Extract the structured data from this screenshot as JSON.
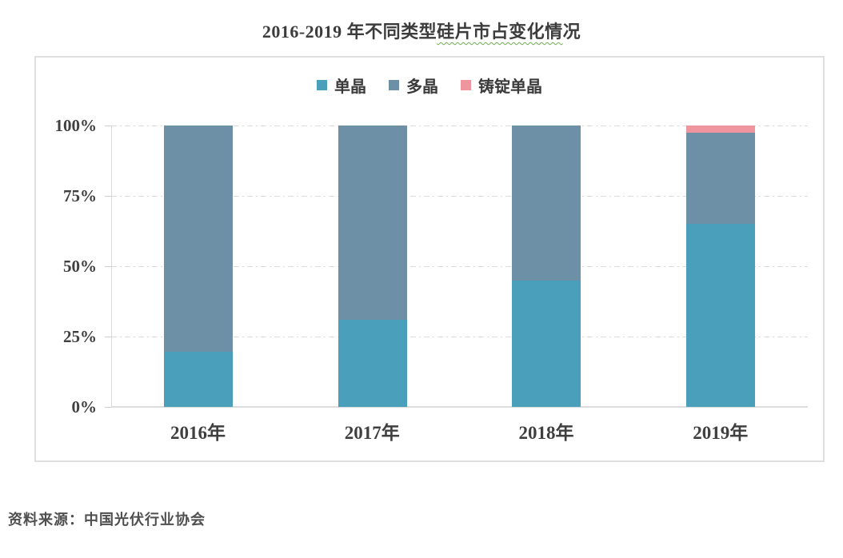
{
  "title": {
    "prefix": "2016-2019 年不同类型",
    "squiggle": "硅片市占变化情",
    "suffix": "况"
  },
  "source_note": "资料来源：中国光伏行业协会",
  "colors": {
    "mono": "#4aa0ba",
    "multi": "#6e90a6",
    "cast_mono": "#ef959d",
    "axis": "#d9d9d9",
    "text": "#404040",
    "squiggle_underline": "#6fae4e"
  },
  "chart_data": {
    "type": "bar",
    "stacked": true,
    "title": "2016-2019 年不同类型硅片市占变化情况",
    "categories": [
      "2016年",
      "2017年",
      "2018年",
      "2019年"
    ],
    "series": [
      {
        "name": "单晶",
        "color": "#4aa0ba",
        "values": [
          19.5,
          31,
          45,
          65
        ]
      },
      {
        "name": "多晶",
        "color": "#6e90a6",
        "values": [
          80.5,
          69,
          55,
          32.5
        ]
      },
      {
        "name": "铸锭单晶",
        "color": "#ef959d",
        "values": [
          0,
          0,
          0,
          2.5
        ]
      }
    ],
    "xlabel": "",
    "ylabel": "",
    "ylim": [
      0,
      100
    ],
    "y_ticks": [
      100,
      75,
      50,
      25,
      0
    ],
    "y_tick_labels": [
      "100%",
      "75%",
      "50%",
      "25%",
      "0%"
    ],
    "legend_position": "top-center",
    "grid": "horizontal-dash-dot"
  }
}
